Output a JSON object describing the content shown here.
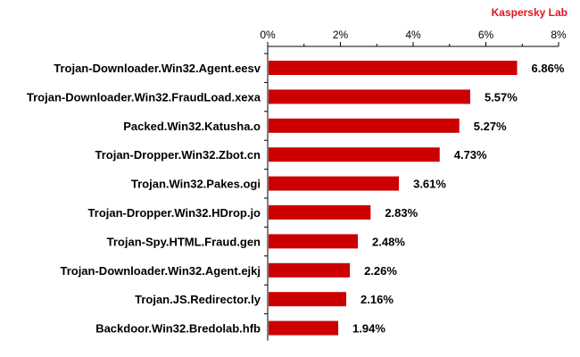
{
  "brand": {
    "text": "Kaspersky Lab",
    "color": "#e0141e"
  },
  "colors": {
    "bar": "#cc0000",
    "axis": "#000000"
  },
  "chart_data": {
    "type": "bar",
    "orientation": "horizontal",
    "axis_position": "top",
    "grid": false,
    "xlim": [
      0,
      8
    ],
    "x_ticks": [
      {
        "value": 0,
        "label": "0%"
      },
      {
        "value": 2,
        "label": "2%"
      },
      {
        "value": 4,
        "label": "4%"
      },
      {
        "value": 6,
        "label": "6%"
      },
      {
        "value": 8,
        "label": "8%"
      }
    ],
    "categories": [
      "Trojan-Downloader.Win32.Agent.eesv",
      "Trojan-Downloader.Win32.FraudLoad.xexa",
      "Packed.Win32.Katusha.o",
      "Trojan-Dropper.Win32.Zbot.cn",
      "Trojan.Win32.Pakes.ogi",
      "Trojan-Dropper.Win32.HDrop.jo",
      "Trojan-Spy.HTML.Fraud.gen",
      "Trojan-Downloader.Win32.Agent.ejkj",
      "Trojan.JS.Redirector.ly",
      "Backdoor.Win32.Bredolab.hfb"
    ],
    "values": [
      6.86,
      5.57,
      5.27,
      4.73,
      3.61,
      2.83,
      2.48,
      2.26,
      2.16,
      1.94
    ],
    "value_labels": [
      "6.86%",
      "5.57%",
      "5.27%",
      "4.73%",
      "3.61%",
      "2.83%",
      "2.48%",
      "2.26%",
      "2.16%",
      "1.94%"
    ]
  }
}
